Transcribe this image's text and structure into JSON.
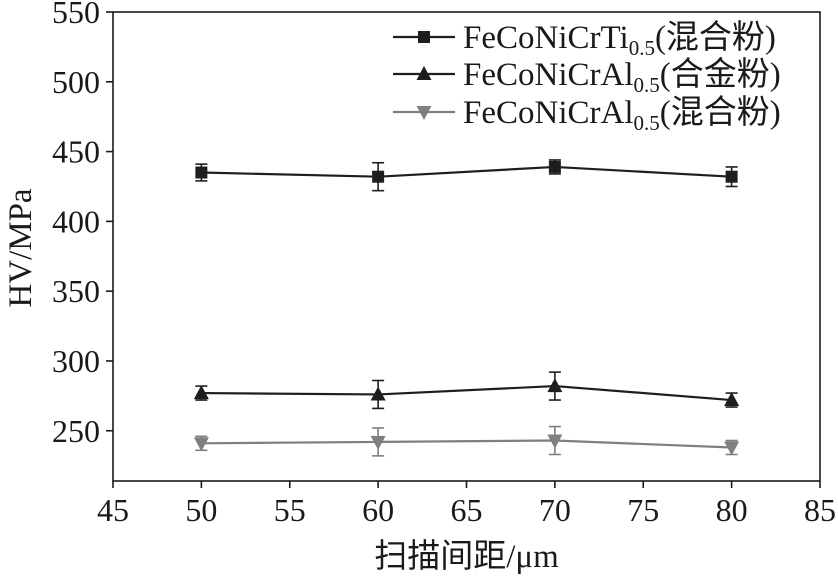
{
  "chart_data": {
    "type": "line",
    "xlabel": "扫描间距/μm",
    "ylabel": "HV/MPa",
    "xlim": [
      45,
      85
    ],
    "ylim": [
      214,
      550
    ],
    "xticks": [
      45,
      50,
      55,
      60,
      65,
      70,
      75,
      80,
      85
    ],
    "yticks": [
      250,
      300,
      350,
      400,
      450,
      500,
      550
    ],
    "grid": false,
    "legend": "top-right",
    "x": [
      50,
      60,
      70,
      80
    ],
    "series": [
      {
        "name": {
          "base": "FeCoNiCrTi",
          "sub": "0.5",
          "suffix": "(混合粉)"
        },
        "marker": "square",
        "color": "#1e1e1e",
        "values": [
          435,
          432,
          439,
          432
        ],
        "errors": [
          6,
          10,
          5,
          7
        ]
      },
      {
        "name": {
          "base": "FeCoNiCrAl",
          "sub": "0.5",
          "suffix": "(合金粉)"
        },
        "marker": "triangle-up",
        "color": "#1e1e1e",
        "values": [
          277,
          276,
          282,
          272
        ],
        "errors": [
          5,
          10,
          10,
          5
        ]
      },
      {
        "name": {
          "base": "FeCoNiCrAl",
          "sub": "0.5",
          "suffix": "(混合粉)"
        },
        "marker": "triangle-down",
        "color": "#7f7f7f",
        "values": [
          241,
          242,
          243,
          238
        ],
        "errors": [
          5,
          10,
          10,
          5
        ]
      }
    ]
  }
}
